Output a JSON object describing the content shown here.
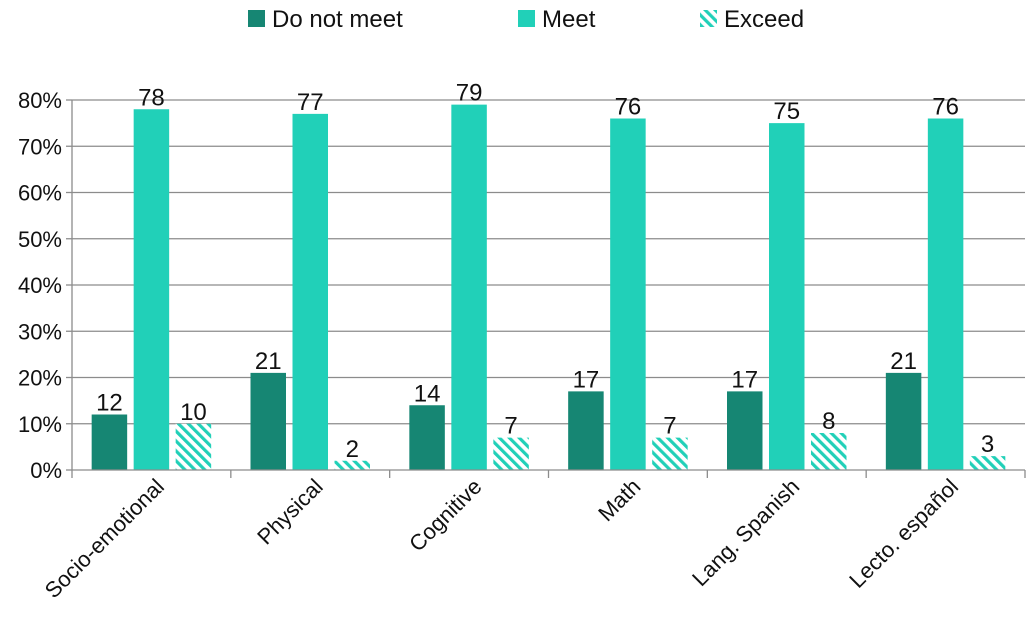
{
  "chart_data": {
    "type": "bar",
    "categories": [
      "Socio-emotional",
      "Physical",
      "Cognitive",
      "Math",
      "Lang. Spanish",
      "Lecto. español"
    ],
    "series": [
      {
        "name": "Do not meet",
        "values": [
          12,
          21,
          14,
          17,
          17,
          21
        ],
        "color": "#168673",
        "pattern": "solid"
      },
      {
        "name": "Meet",
        "values": [
          78,
          77,
          79,
          76,
          75,
          76
        ],
        "color": "#21d0b8",
        "pattern": "solid"
      },
      {
        "name": "Exceed",
        "values": [
          10,
          2,
          7,
          7,
          8,
          3
        ],
        "color": "#21d0b8",
        "pattern": "hatched"
      }
    ],
    "y_ticks": [
      "0%",
      "10%",
      "20%",
      "30%",
      "40%",
      "50%",
      "60%",
      "70%",
      "80%"
    ],
    "ylim": [
      0,
      80
    ],
    "grid": "horizontal",
    "legend_position": "top",
    "colors": {
      "gridline": "#8c8c8c",
      "axis": "#8c8c8c"
    }
  }
}
